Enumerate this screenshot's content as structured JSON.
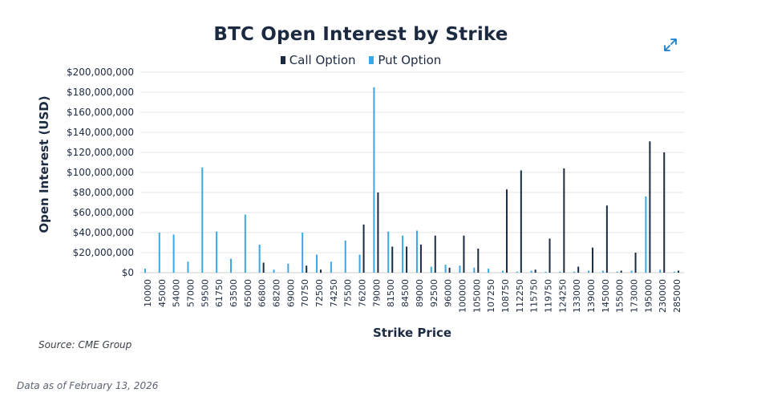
{
  "chart_data": {
    "type": "bar",
    "title": "BTC Open Interest by Strike",
    "xlabel": "Strike Price",
    "ylabel": "Open Interest (USD)",
    "ylim": [
      0,
      200000000
    ],
    "yticks": [
      "$0",
      "$20,000,000",
      "$40,000,000",
      "$60,000,000",
      "$80,000,000",
      "$100,000,000",
      "$120,000,000",
      "$140,000,000",
      "$160,000,000",
      "$180,000,000",
      "$200,000,000"
    ],
    "grid": true,
    "legend_position": "top",
    "colors": {
      "call": "#1b2a41",
      "put": "#3aa8e6"
    },
    "categories": [
      "10000",
      "45000",
      "54000",
      "57000",
      "59500",
      "61750",
      "63500",
      "65000",
      "66800",
      "68200",
      "69000",
      "70750",
      "72500",
      "74250",
      "75500",
      "76200",
      "79000",
      "81500",
      "84500",
      "89000",
      "92500",
      "96000",
      "100000",
      "105000",
      "107250",
      "108750",
      "112250",
      "115750",
      "119750",
      "124250",
      "133000",
      "139000",
      "145000",
      "155000",
      "173000",
      "195000",
      "230000",
      "285000"
    ],
    "series": [
      {
        "name": "Call Option",
        "values": [
          0,
          0,
          0,
          0,
          0,
          0,
          0,
          0,
          10000000,
          0,
          0,
          7000000,
          3000000,
          0,
          0,
          48000000,
          80000000,
          26000000,
          26000000,
          28000000,
          37000000,
          5000000,
          37000000,
          24000000,
          0,
          83000000,
          102000000,
          3000000,
          34000000,
          104000000,
          6000000,
          25000000,
          67000000,
          2000000,
          20000000,
          131000000,
          120000000,
          2000000
        ]
      },
      {
        "name": "Put Option",
        "values": [
          4000000,
          40000000,
          38000000,
          11000000,
          105000000,
          41000000,
          14000000,
          58000000,
          28000000,
          3000000,
          9000000,
          40000000,
          18000000,
          11000000,
          32000000,
          18000000,
          185000000,
          41000000,
          37000000,
          42000000,
          6000000,
          8000000,
          7000000,
          5000000,
          4000000,
          2000000,
          1000000,
          2000000,
          1000000,
          1000000,
          1000000,
          2000000,
          2000000,
          1000000,
          2000000,
          76000000,
          3000000,
          1000000
        ]
      }
    ]
  },
  "source": "Source: CME Group",
  "date_note": "Data as of February 13, 2026",
  "icons": {
    "expand": "expand-icon"
  }
}
